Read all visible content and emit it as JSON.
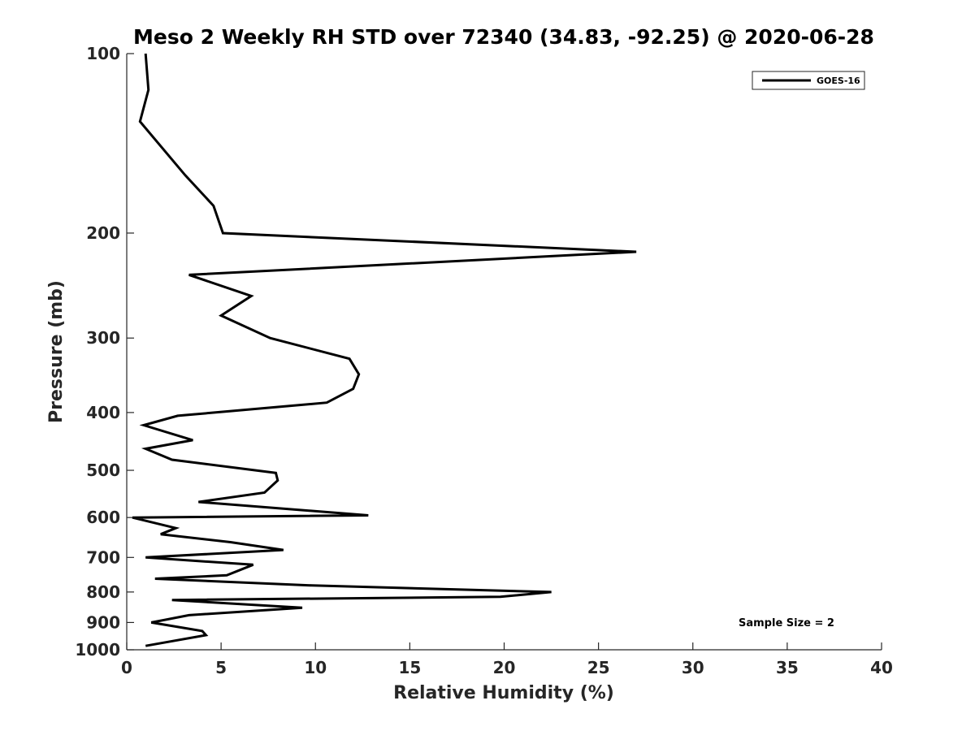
{
  "chart_data": {
    "type": "line",
    "title": "Meso 2 Weekly RH STD over 72340 (34.83, -92.25) @ 2020-06-28",
    "xlabel": "Relative Humidity (%)",
    "ylabel": "Pressure (mb)",
    "xlim": [
      0,
      40
    ],
    "ylim": [
      100,
      1000
    ],
    "y_scale": "log",
    "y_reversed": true,
    "x_ticks": [
      0,
      5,
      10,
      15,
      20,
      25,
      30,
      35,
      40
    ],
    "y_ticks": [
      100,
      200,
      300,
      400,
      500,
      600,
      700,
      800,
      900,
      1000
    ],
    "grid": false,
    "legend_position": "top-right",
    "series": [
      {
        "name": "GOES-16",
        "color": "#000000",
        "x": [
          1.0,
          1.15,
          0.7,
          3.1,
          4.6,
          5.1,
          27.0,
          3.3,
          6.6,
          5.0,
          7.6,
          11.8,
          12.3,
          12.0,
          10.6,
          2.7,
          0.9,
          3.5,
          1.0,
          2.4,
          7.9,
          8.0,
          7.3,
          3.8,
          12.8,
          0.3,
          2.6,
          1.8,
          5.5,
          8.3,
          1.0,
          6.7,
          5.3,
          1.5,
          9.8,
          22.5,
          19.8,
          2.4,
          9.3,
          3.3,
          1.3,
          4.0,
          4.2,
          1.0
        ],
        "y": [
          100,
          115,
          130,
          160,
          180,
          200,
          215,
          235,
          255,
          275,
          300,
          325,
          345,
          365,
          385,
          405,
          420,
          445,
          460,
          480,
          505,
          520,
          545,
          565,
          595,
          600,
          625,
          640,
          660,
          680,
          700,
          720,
          750,
          760,
          780,
          800,
          815,
          825,
          850,
          875,
          900,
          930,
          945,
          985
        ]
      }
    ],
    "annotations": [
      "Sample Size = 2"
    ]
  }
}
